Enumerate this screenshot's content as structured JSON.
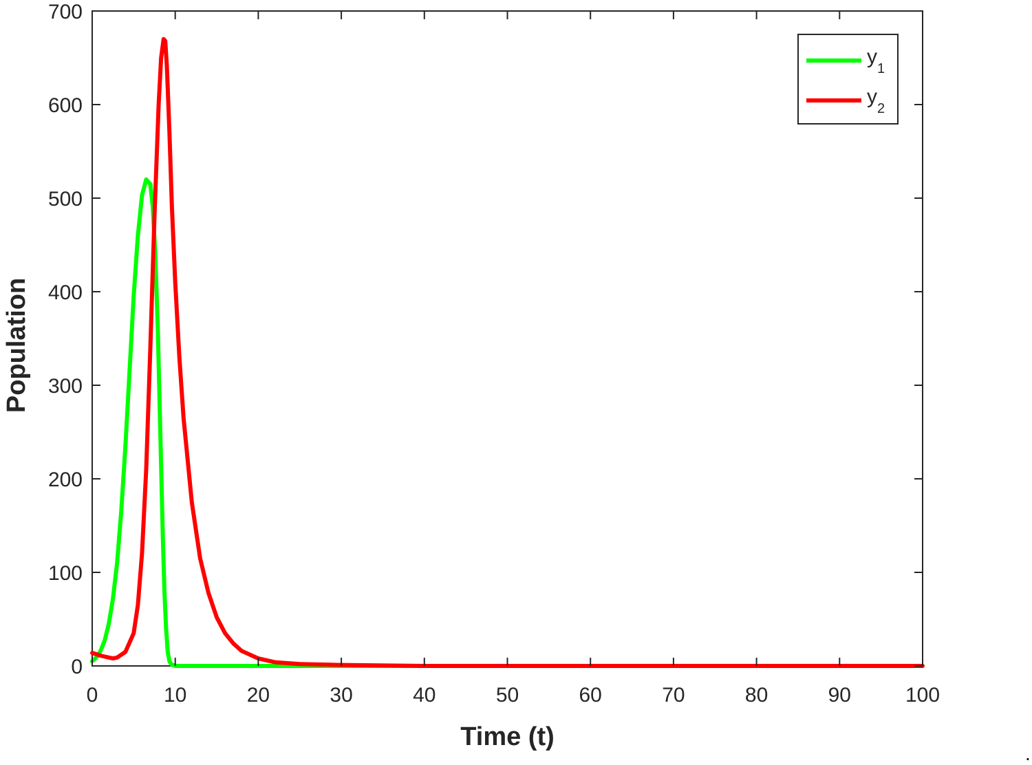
{
  "chart_data": {
    "type": "line",
    "title": "",
    "xlabel": "Time (t)",
    "ylabel": "Population",
    "xlim": [
      0,
      100
    ],
    "ylim": [
      0,
      700
    ],
    "xticks": [
      0,
      10,
      20,
      30,
      40,
      50,
      60,
      70,
      80,
      90,
      100
    ],
    "yticks": [
      0,
      100,
      200,
      300,
      400,
      500,
      600,
      700
    ],
    "grid": false,
    "legend_position": "top-right",
    "series": [
      {
        "name": "y1",
        "name_base": "y",
        "name_sub": "1",
        "color": "#00ff00",
        "x": [
          0,
          0.5,
          1,
          1.5,
          2,
          2.5,
          3,
          3.5,
          4,
          4.5,
          5,
          5.5,
          6,
          6.5,
          7,
          7.3,
          7.6,
          7.9,
          8.2,
          8.5,
          8.7,
          8.9,
          9.1,
          9.3,
          9.5,
          9.7,
          10,
          12,
          15,
          20,
          30,
          50,
          100
        ],
        "y": [
          5,
          9,
          16,
          27,
          45,
          72,
          110,
          165,
          235,
          315,
          395,
          460,
          503,
          520,
          515,
          490,
          440,
          360,
          250,
          140,
          80,
          40,
          15,
          5,
          2,
          1,
          0,
          0,
          0,
          0,
          0,
          0,
          0
        ]
      },
      {
        "name": "y2",
        "name_base": "y",
        "name_sub": "2",
        "color": "#ff0000",
        "x": [
          0,
          1,
          2,
          2.5,
          3,
          4,
          5,
          5.5,
          6,
          6.5,
          7,
          7.5,
          8,
          8.3,
          8.6,
          8.8,
          9,
          9.3,
          9.6,
          10,
          10.5,
          11,
          12,
          13,
          14,
          15,
          16,
          17,
          18,
          20,
          22,
          25,
          30,
          40,
          100
        ],
        "y": [
          14,
          11,
          9,
          8,
          9,
          15,
          35,
          65,
          120,
          210,
          340,
          480,
          600,
          650,
          670,
          668,
          640,
          570,
          490,
          410,
          330,
          265,
          175,
          115,
          78,
          52,
          35,
          24,
          16,
          8,
          4,
          2,
          1,
          0,
          0
        ]
      }
    ]
  }
}
